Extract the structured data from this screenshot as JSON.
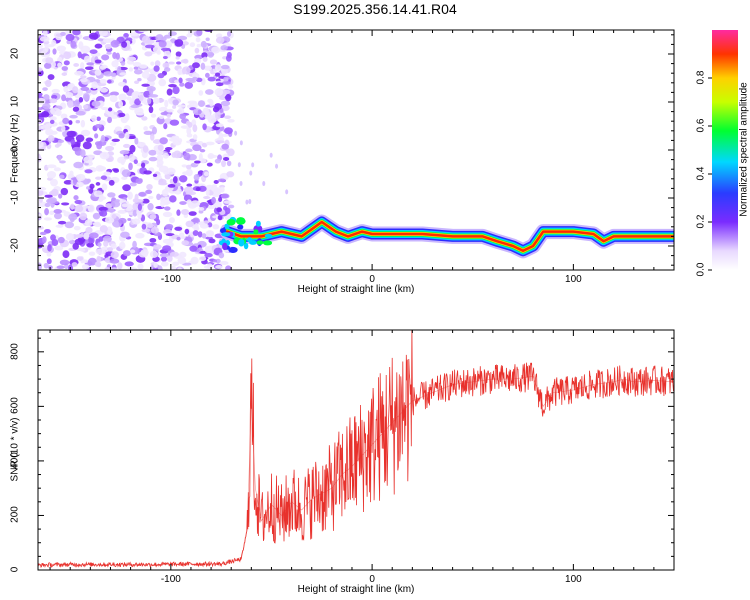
{
  "title": "S199.2025.356.14.41.R04",
  "chart_data": [
    {
      "type": "heatmap",
      "name": "spectrogram",
      "xlabel": "Height of straight line (km)",
      "ylabel": "Frequency (Hz)",
      "xlim": [
        -166,
        150
      ],
      "ylim": [
        -25,
        25
      ],
      "xticks": [
        -100,
        0,
        100
      ],
      "yticks": [
        -20,
        -10,
        0,
        10,
        20
      ],
      "noise_region_x": [
        -166,
        -72
      ],
      "signal_line": {
        "x": [
          -72,
          -65,
          -55,
          -45,
          -35,
          -25,
          -18,
          -12,
          -5,
          0,
          10,
          25,
          40,
          55,
          62,
          70,
          75,
          80,
          85,
          90,
          100,
          110,
          115,
          120,
          130,
          140,
          150
        ],
        "y": [
          -17,
          -18,
          -18,
          -17,
          -18,
          -15,
          -17,
          -18,
          -17,
          -17.5,
          -17.5,
          -17.5,
          -18,
          -18,
          -19,
          -20,
          -21,
          -20,
          -17,
          -17,
          -17,
          -17.5,
          -19,
          -18,
          -18,
          -18,
          -18
        ]
      },
      "colorbar": {
        "label": "Normalized spectral amplitude",
        "ticks": [
          "0.0",
          "0.2",
          "0.4",
          "0.6",
          "0.8"
        ],
        "range": [
          0,
          1
        ]
      }
    },
    {
      "type": "line",
      "name": "snr",
      "xlabel": "Height of straight line (km)",
      "ylabel": "SNR (10 * v/v)",
      "xlim": [
        -166,
        150
      ],
      "ylim": [
        0,
        880
      ],
      "xticks": [
        -100,
        0,
        100
      ],
      "yticks": [
        0,
        200,
        400,
        600,
        800
      ],
      "color": "#e8312c",
      "series": [
        {
          "name": "SNR",
          "x": [
            -166,
            -150,
            -130,
            -110,
            -90,
            -75,
            -65,
            -62,
            -60,
            -58,
            -55,
            -50,
            -45,
            -40,
            -35,
            -30,
            -25,
            -20,
            -15,
            -10,
            -5,
            0,
            5,
            10,
            15,
            20,
            30,
            40,
            50,
            60,
            70,
            80,
            85,
            90,
            100,
            110,
            120,
            125,
            130,
            140,
            150
          ],
          "y": [
            18,
            20,
            20,
            20,
            22,
            22,
            40,
            150,
            620,
            300,
            180,
            240,
            200,
            250,
            220,
            260,
            280,
            300,
            350,
            380,
            420,
            460,
            500,
            540,
            580,
            620,
            650,
            680,
            690,
            700,
            700,
            710,
            600,
            650,
            660,
            680,
            690,
            700,
            690,
            695,
            690
          ]
        }
      ]
    }
  ]
}
